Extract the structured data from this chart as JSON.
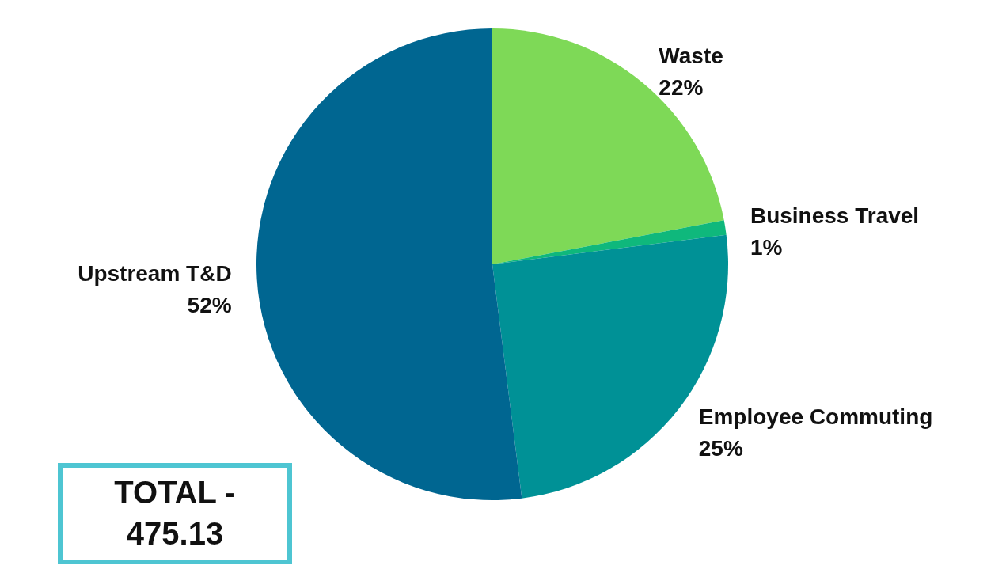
{
  "chart_data": {
    "type": "pie",
    "categories": [
      "Waste",
      "Business Travel",
      "Employee Commuting",
      "Upstream T&D"
    ],
    "values": [
      22,
      1,
      25,
      52
    ],
    "colors": [
      "#7ed957",
      "#0fb87c",
      "#009196",
      "#006691"
    ],
    "value_labels": [
      "22%",
      "1%",
      "25%",
      "52%"
    ],
    "annotations": [
      "TOTAL - 475.13"
    ]
  }
}
